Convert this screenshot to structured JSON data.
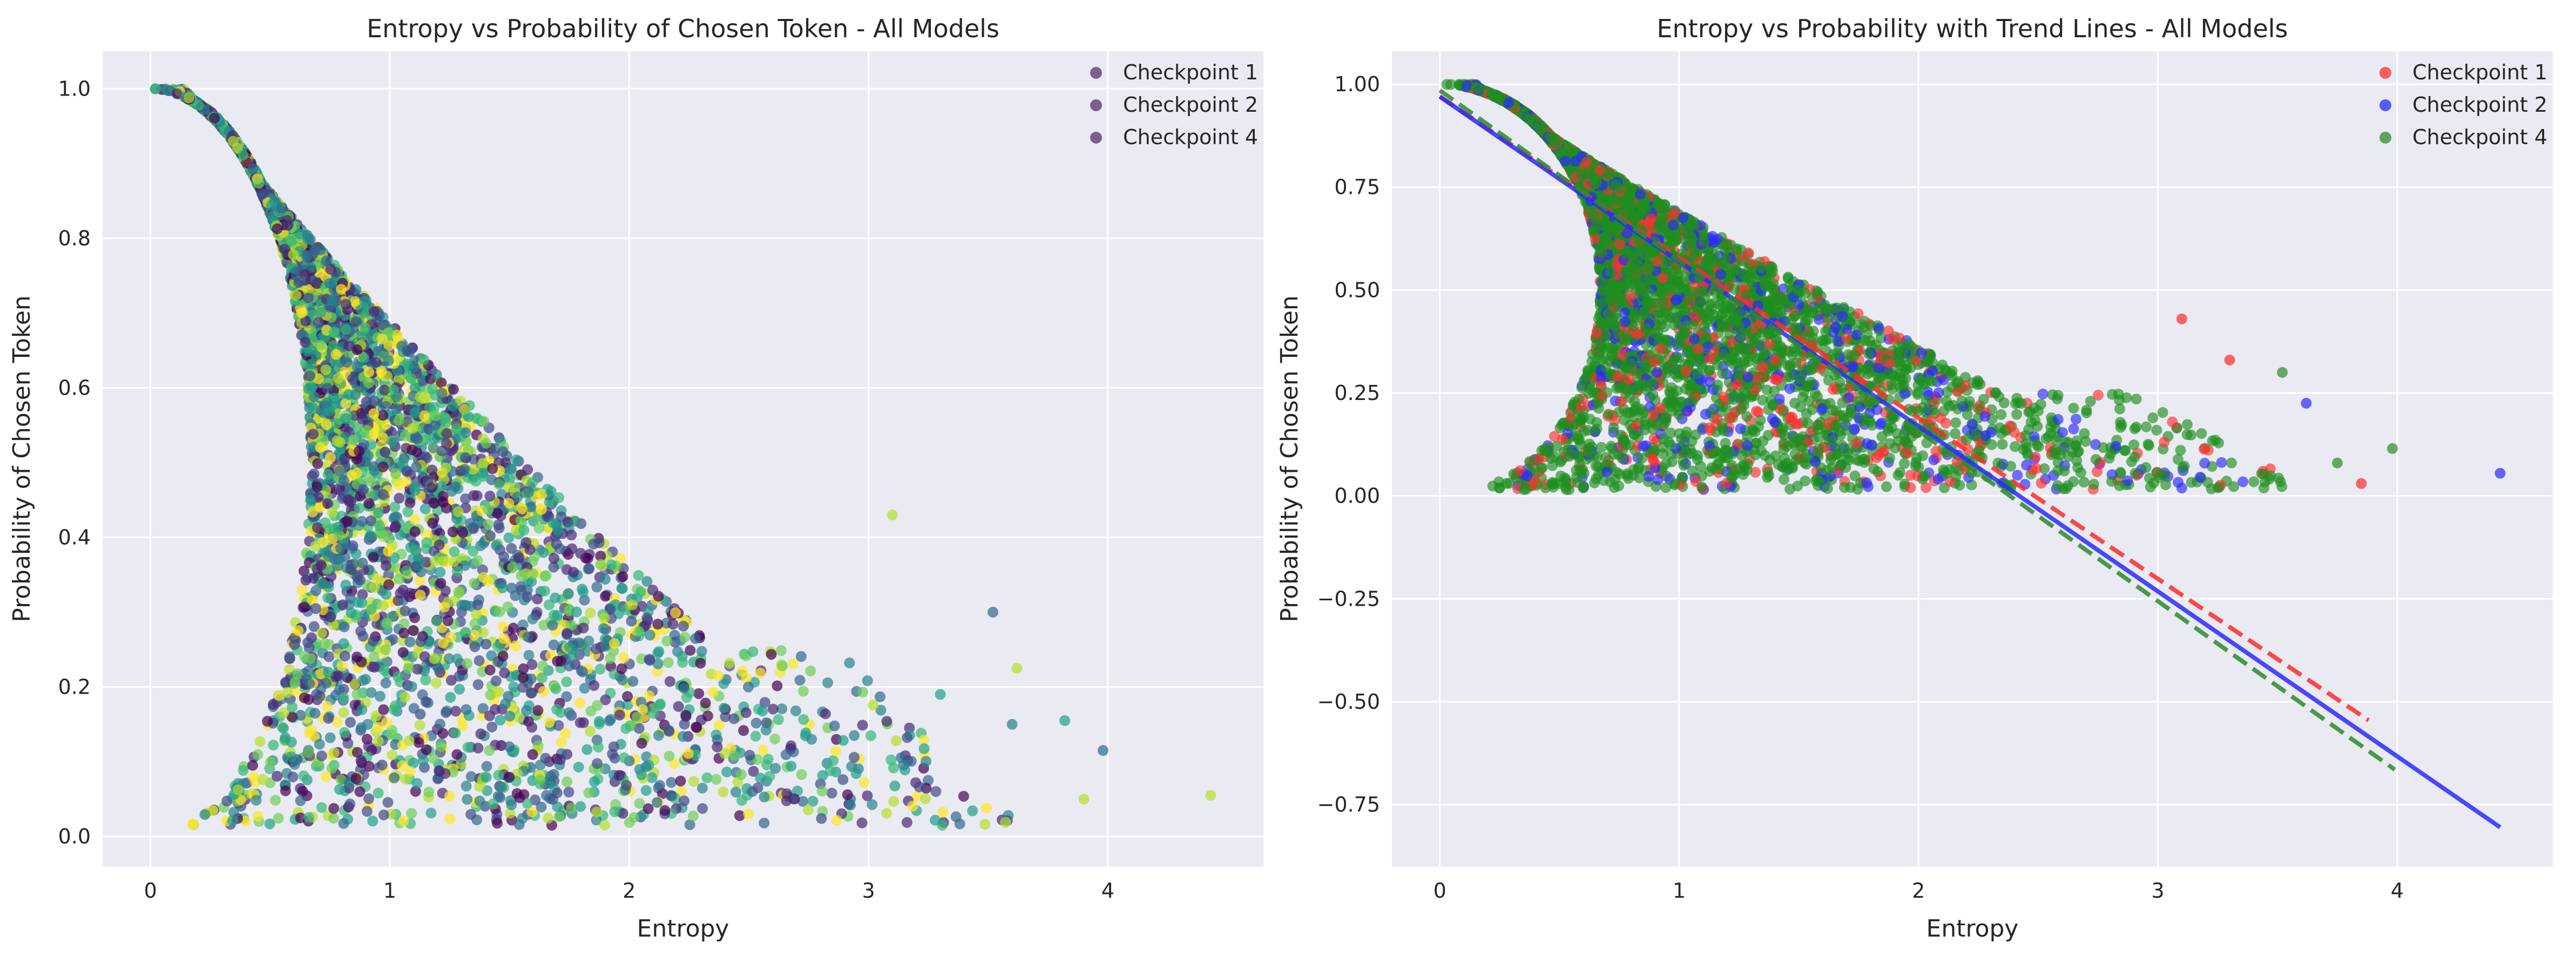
{
  "chart_data": [
    {
      "type": "scatter",
      "title": "Entropy vs Probability of Chosen Token - All Models",
      "xlabel": "Entropy",
      "ylabel": "Probability of Chosen Token",
      "xlim": [
        -0.2,
        4.65
      ],
      "ylim": [
        -0.04,
        1.05
      ],
      "xticks": [
        0,
        1,
        2,
        3,
        4
      ],
      "xtick_labels": [
        "0",
        "1",
        "2",
        "3",
        "4"
      ],
      "yticks": [
        0.0,
        0.2,
        0.4,
        0.6,
        0.8,
        1.0
      ],
      "ytick_labels": [
        "0.0",
        "0.2",
        "0.4",
        "0.6",
        "0.8",
        "1.0"
      ],
      "grid": true,
      "legend_position": "top-right",
      "colormap": "viridis",
      "series": [
        {
          "name": "Checkpoint 1",
          "color": "#5b2f6e"
        },
        {
          "name": "Checkpoint 2",
          "color": "#5b2f6e"
        },
        {
          "name": "Checkpoint 4",
          "color": "#5b2f6e"
        }
      ],
      "outlier_points": [
        [
          4.43,
          0.055
        ],
        [
          3.98,
          0.115
        ],
        [
          3.9,
          0.05
        ],
        [
          3.82,
          0.155
        ],
        [
          3.62,
          0.225
        ],
        [
          3.52,
          0.3
        ],
        [
          3.1,
          0.43
        ],
        [
          3.3,
          0.19
        ],
        [
          3.6,
          0.15
        ]
      ]
    },
    {
      "type": "scatter",
      "title": "Entropy vs Probability with Trend Lines - All Models",
      "xlabel": "Entropy",
      "ylabel": "Probability of Chosen Token",
      "xlim": [
        -0.2,
        4.65
      ],
      "ylim": [
        -0.9,
        1.08
      ],
      "xticks": [
        0,
        1,
        2,
        3,
        4
      ],
      "xtick_labels": [
        "0",
        "1",
        "2",
        "3",
        "4"
      ],
      "yticks": [
        -0.75,
        -0.5,
        -0.25,
        0.0,
        0.25,
        0.5,
        0.75,
        1.0
      ],
      "ytick_labels": [
        "−0.75",
        "−0.50",
        "−0.25",
        "0.00",
        "0.25",
        "0.50",
        "0.75",
        "1.00"
      ],
      "grid": true,
      "legend_position": "top-right",
      "series": [
        {
          "name": "Checkpoint 1",
          "color": "#ff2a2a",
          "trend": {
            "x": [
              0.0,
              3.88
            ],
            "y": [
              0.97,
              -0.545
            ],
            "style": "dashed"
          }
        },
        {
          "name": "Checkpoint 2",
          "color": "#2a2aff",
          "trend": {
            "x": [
              0.0,
              4.43
            ],
            "y": [
              0.97,
              -0.805
            ],
            "style": "solid"
          }
        },
        {
          "name": "Checkpoint 4",
          "color": "#2e8b2e",
          "trend": {
            "x": [
              0.0,
              3.99
            ],
            "y": [
              0.985,
              -0.665
            ],
            "style": "dashed"
          }
        }
      ],
      "outlier_points": [
        [
          4.43,
          0.055,
          "#2a2aff"
        ],
        [
          3.98,
          0.115,
          "#2e8b2e"
        ],
        [
          3.85,
          0.03,
          "#ff2a2a"
        ],
        [
          3.52,
          0.3,
          "#2e8b2e"
        ],
        [
          3.1,
          0.43,
          "#ff2a2a"
        ],
        [
          3.62,
          0.225,
          "#2a2aff"
        ],
        [
          3.3,
          0.33,
          "#ff2a2a"
        ],
        [
          3.75,
          0.08,
          "#2e8b2e"
        ]
      ]
    }
  ]
}
